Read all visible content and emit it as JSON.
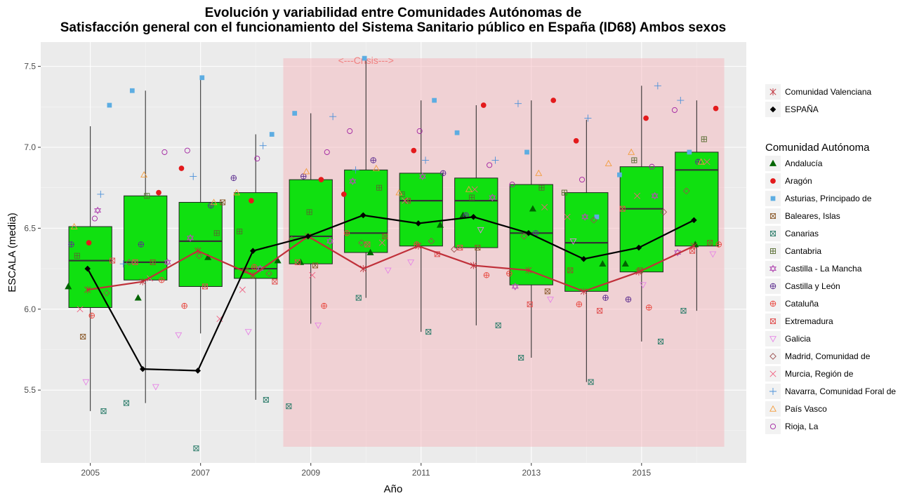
{
  "chart_data": {
    "type": "box",
    "title": "Evolución y variabilidad entre Comunidades Autónomas de",
    "subtitle": "Satisfacción general con el funcionamiento del Sistema Sanitario público en España (ID68) Ambos sexos",
    "xlabel": "Año",
    "ylabel": "ESCALA (media)",
    "xlim": [
      2004.1,
      2016.9
    ],
    "ylim": [
      5.05,
      7.65
    ],
    "x_ticks": [
      2005,
      2007,
      2009,
      2011,
      2013,
      2015
    ],
    "y_ticks": [
      5.5,
      6.0,
      6.5,
      7.0,
      7.5
    ],
    "grid": true,
    "legend_position": "right",
    "annotation": {
      "text": "<---Crisis--->",
      "x_range": [
        2008.5,
        2016.5
      ],
      "y_range": [
        5.15,
        7.55
      ]
    },
    "years": [
      2005,
      2006,
      2007,
      2008,
      2009,
      2010,
      2011,
      2012,
      2013,
      2014,
      2015,
      2016
    ],
    "boxes": [
      {
        "year": 2005,
        "q1": 6.01,
        "median": 6.3,
        "q3": 6.51,
        "whisker_low": 5.37,
        "whisker_high": 7.13
      },
      {
        "year": 2006,
        "q1": 6.18,
        "median": 6.29,
        "q3": 6.7,
        "whisker_low": 5.42,
        "whisker_high": 7.35
      },
      {
        "year": 2007,
        "q1": 6.14,
        "median": 6.42,
        "q3": 6.66,
        "whisker_low": 5.85,
        "whisker_high": 7.43
      },
      {
        "year": 2008,
        "q1": 6.19,
        "median": 6.25,
        "q3": 6.72,
        "whisker_low": 5.44,
        "whisker_high": 7.08
      },
      {
        "year": 2009,
        "q1": 6.28,
        "median": 6.45,
        "q3": 6.8,
        "whisker_low": 5.91,
        "whisker_high": 7.21
      },
      {
        "year": 2010,
        "q1": 6.35,
        "median": 6.47,
        "q3": 6.86,
        "whisker_low": 6.07,
        "whisker_high": 7.55
      },
      {
        "year": 2011,
        "q1": 6.39,
        "median": 6.67,
        "q3": 6.84,
        "whisker_low": 5.86,
        "whisker_high": 7.29
      },
      {
        "year": 2012,
        "q1": 6.38,
        "median": 6.67,
        "q3": 6.81,
        "whisker_low": 5.9,
        "whisker_high": 7.26
      },
      {
        "year": 2013,
        "q1": 6.15,
        "median": 6.47,
        "q3": 6.77,
        "whisker_low": 5.7,
        "whisker_high": 7.29
      },
      {
        "year": 2014,
        "q1": 6.11,
        "median": 6.41,
        "q3": 6.72,
        "whisker_low": 5.55,
        "whisker_high": 7.17
      },
      {
        "year": 2015,
        "q1": 6.23,
        "median": 6.62,
        "q3": 6.88,
        "whisker_low": 5.8,
        "whisker_high": 7.38
      },
      {
        "year": 2016,
        "q1": 6.39,
        "median": 6.86,
        "q3": 6.97,
        "whisker_low": 5.99,
        "whisker_high": 7.29
      }
    ],
    "lines": [
      {
        "name": "Comunidad Valenciana",
        "color": "#c0303a",
        "shape": "asterisk",
        "values": [
          6.12,
          6.17,
          6.36,
          6.21,
          6.45,
          6.25,
          6.39,
          6.27,
          6.24,
          6.11,
          6.23,
          6.39
        ]
      },
      {
        "name": "ESPAÑA",
        "color": "#000000",
        "shape": "diamond-filled",
        "values": [
          6.25,
          5.63,
          5.62,
          6.36,
          6.45,
          6.58,
          6.53,
          6.57,
          6.47,
          6.31,
          6.38,
          6.55
        ]
      }
    ],
    "legend_title": "Comunidad Autónoma",
    "series": [
      {
        "name": "Andalucía",
        "color": "#006400",
        "shape": "triangle-filled",
        "values": [
          6.14,
          6.07,
          6.32,
          6.3,
          6.29,
          6.35,
          6.52,
          6.58,
          6.62,
          6.28,
          6.28,
          6.4
        ]
      },
      {
        "name": "Aragón",
        "color": "#e31a1c",
        "shape": "circle-filled",
        "values": [
          6.41,
          6.72,
          6.87,
          6.67,
          6.8,
          6.71,
          6.98,
          7.26,
          7.29,
          7.04,
          7.18,
          7.24
        ]
      },
      {
        "name": "Asturias, Principado de",
        "color": "#5dade2",
        "shape": "square-filled",
        "values": [
          7.26,
          7.35,
          7.43,
          7.08,
          7.21,
          7.55,
          7.29,
          7.09,
          6.97,
          6.57,
          6.83,
          6.97
        ]
      },
      {
        "name": "Baleares, Islas",
        "color": "#8b5a2b",
        "shape": "square-x",
        "values": [
          5.83,
          6.29,
          6.66,
          6.24,
          6.27,
          6.45,
          6.67,
          6.38,
          6.11,
          6.24,
          6.24,
          6.41
        ]
      },
      {
        "name": "Canarias",
        "color": "#2e7d6b",
        "shape": "square-x",
        "values": [
          5.37,
          5.42,
          5.14,
          5.44,
          5.4,
          6.07,
          5.86,
          5.9,
          5.7,
          5.55,
          5.8,
          5.99
        ]
      },
      {
        "name": "Cantabria",
        "color": "#556b2f",
        "shape": "square-plus",
        "values": [
          6.33,
          6.7,
          6.47,
          6.48,
          6.6,
          6.75,
          6.71,
          6.69,
          6.75,
          6.72,
          6.92,
          7.05
        ]
      },
      {
        "name": "Castilla - La Mancha",
        "color": "#b44fb4",
        "shape": "star-david",
        "values": [
          6.61,
          6.29,
          6.44,
          6.25,
          6.42,
          6.79,
          6.82,
          6.69,
          6.14,
          6.57,
          6.7,
          6.35
        ]
      },
      {
        "name": "Castilla y León",
        "color": "#5b2c8e",
        "shape": "circle-plus",
        "values": [
          6.4,
          6.4,
          6.64,
          6.81,
          6.82,
          6.92,
          6.84,
          6.58,
          6.47,
          6.07,
          6.06,
          6.91
        ]
      },
      {
        "name": "Cataluña",
        "color": "#e8453c",
        "shape": "circle-plus",
        "values": [
          5.96,
          6.18,
          6.02,
          6.26,
          6.02,
          6.47,
          6.4,
          6.21,
          6.22,
          6.03,
          6.01,
          6.4
        ]
      },
      {
        "name": "Extremadura",
        "color": "#e05050",
        "shape": "square-x",
        "values": [
          6.3,
          6.29,
          6.14,
          6.17,
          6.29,
          6.4,
          6.34,
          6.38,
          6.03,
          5.99,
          6.62,
          6.36
        ]
      },
      {
        "name": "Galicia",
        "color": "#e684e6",
        "shape": "triangle-down",
        "values": [
          5.55,
          5.52,
          5.84,
          5.86,
          5.9,
          6.24,
          6.29,
          6.49,
          6.06,
          6.42,
          6.15,
          6.34
        ]
      },
      {
        "name": "Madrid, Comunidad de",
        "color": "#9b4f4f",
        "shape": "diamond",
        "values": [
          6.1,
          6.29,
          6.33,
          6.22,
          6.43,
          6.41,
          6.42,
          6.37,
          6.45,
          6.55,
          6.6,
          6.73
        ]
      },
      {
        "name": "Murcia, Región de",
        "color": "#f06080",
        "shape": "cross",
        "values": [
          6.0,
          6.19,
          5.94,
          6.12,
          6.21,
          6.41,
          6.67,
          6.74,
          6.63,
          6.57,
          6.7,
          6.91
        ]
      },
      {
        "name": "Navarra, Comunidad Foral de",
        "color": "#4a90d9",
        "shape": "plus",
        "values": [
          6.71,
          6.28,
          6.82,
          7.01,
          7.19,
          6.86,
          6.92,
          6.92,
          7.27,
          7.18,
          7.38,
          7.29
        ]
      },
      {
        "name": "País Vasco",
        "color": "#f39c3c",
        "shape": "triangle",
        "values": [
          6.51,
          6.83,
          6.66,
          6.72,
          6.85,
          6.87,
          6.72,
          6.74,
          6.84,
          6.9,
          6.97,
          6.91
        ]
      },
      {
        "name": "Rioja, La",
        "color": "#a020a0",
        "shape": "circle",
        "values": [
          6.56,
          6.97,
          6.98,
          6.93,
          6.97,
          7.1,
          7.1,
          6.89,
          6.77,
          6.8,
          6.88,
          7.23
        ]
      }
    ]
  }
}
